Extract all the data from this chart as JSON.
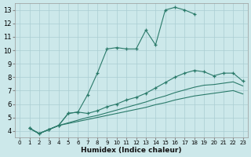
{
  "xlabel": "Humidex (Indice chaleur)",
  "ylabel": "",
  "background_color": "#cce8ea",
  "grid_color": "#aacdd2",
  "line_color": "#2a7a6a",
  "xlim": [
    -0.5,
    23.5
  ],
  "ylim": [
    3.5,
    13.5
  ],
  "xticks": [
    0,
    1,
    2,
    3,
    4,
    5,
    6,
    7,
    8,
    9,
    10,
    11,
    12,
    13,
    14,
    15,
    16,
    17,
    18,
    19,
    20,
    21,
    22,
    23
  ],
  "yticks": [
    4,
    5,
    6,
    7,
    8,
    9,
    10,
    11,
    12,
    13
  ],
  "curves": [
    {
      "x": [
        1,
        2,
        3,
        4,
        5,
        6,
        7,
        8,
        9,
        10,
        11,
        12,
        13,
        14,
        15,
        16,
        17,
        18
      ],
      "y": [
        4.2,
        3.8,
        4.1,
        4.4,
        5.3,
        5.4,
        6.7,
        8.3,
        10.1,
        10.2,
        10.1,
        10.1,
        11.5,
        10.4,
        13.0,
        13.2,
        13.0,
        12.7
      ],
      "marker": true
    },
    {
      "x": [
        1,
        2,
        3,
        4,
        5,
        6,
        7,
        8,
        9,
        10,
        11,
        12,
        13,
        14,
        15,
        16,
        17,
        18,
        19,
        20,
        21,
        22,
        23
      ],
      "y": [
        4.2,
        3.8,
        4.1,
        4.4,
        5.3,
        5.4,
        5.3,
        5.5,
        5.8,
        6.0,
        6.3,
        6.5,
        6.8,
        7.2,
        7.6,
        8.0,
        8.3,
        8.5,
        8.4,
        8.1,
        8.3,
        8.3,
        7.7
      ],
      "marker": true
    },
    {
      "x": [
        1,
        2,
        3,
        4,
        5,
        6,
        7,
        8,
        9,
        10,
        11,
        12,
        13,
        14,
        15,
        16,
        17,
        18,
        19,
        20,
        21,
        22,
        23
      ],
      "y": [
        4.2,
        3.8,
        4.1,
        4.4,
        4.6,
        4.8,
        5.0,
        5.15,
        5.35,
        5.55,
        5.75,
        5.95,
        6.15,
        6.4,
        6.6,
        6.85,
        7.05,
        7.25,
        7.4,
        7.45,
        7.55,
        7.65,
        7.35
      ],
      "marker": false
    },
    {
      "x": [
        1,
        2,
        3,
        4,
        5,
        6,
        7,
        8,
        9,
        10,
        11,
        12,
        13,
        14,
        15,
        16,
        17,
        18,
        19,
        20,
        21,
        22,
        23
      ],
      "y": [
        4.2,
        3.8,
        4.1,
        4.4,
        4.55,
        4.7,
        4.85,
        5.0,
        5.15,
        5.3,
        5.45,
        5.6,
        5.75,
        5.95,
        6.1,
        6.3,
        6.45,
        6.6,
        6.7,
        6.8,
        6.9,
        7.0,
        6.75
      ],
      "marker": false
    }
  ]
}
